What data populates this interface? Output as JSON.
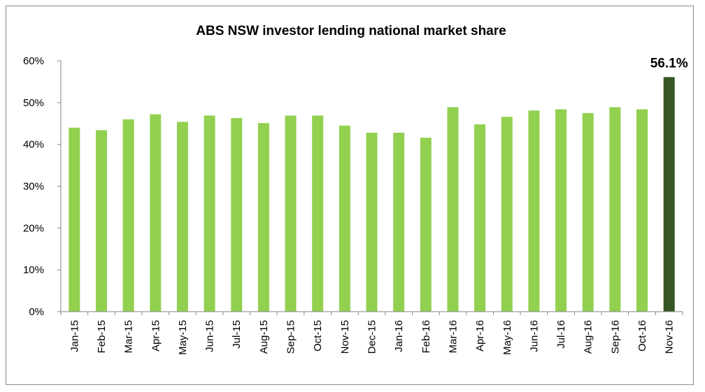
{
  "chart_data": {
    "type": "bar",
    "title": "ABS NSW investor lending national market share",
    "xlabel": "",
    "ylabel": "",
    "ylim": [
      0,
      60
    ],
    "yticks": [
      "0%",
      "10%",
      "20%",
      "30%",
      "40%",
      "50%",
      "60%"
    ],
    "categories": [
      "Jan-15",
      "Feb-15",
      "Mar-15",
      "Apr-15",
      "May-15",
      "Jun-15",
      "Jul-15",
      "Aug-15",
      "Sep-15",
      "Oct-15",
      "Nov-15",
      "Dec-15",
      "Jan-16",
      "Feb-16",
      "Mar-16",
      "Apr-16",
      "May-16",
      "Jun-16",
      "Jul-16",
      "Aug-16",
      "Sep-16",
      "Oct-16",
      "Nov-16"
    ],
    "values": [
      44.0,
      43.4,
      46.0,
      47.2,
      45.4,
      46.9,
      46.3,
      45.1,
      46.9,
      46.9,
      44.5,
      42.8,
      42.8,
      41.6,
      48.9,
      44.8,
      46.6,
      48.1,
      48.4,
      47.5,
      48.9,
      48.4,
      56.1
    ],
    "data_labels": [
      {
        "index": 22,
        "text": "56.1%"
      }
    ],
    "colors": {
      "bar": "#92d050",
      "highlight": "#375623",
      "axis": "#868686"
    },
    "grid": false,
    "legend": "none"
  }
}
